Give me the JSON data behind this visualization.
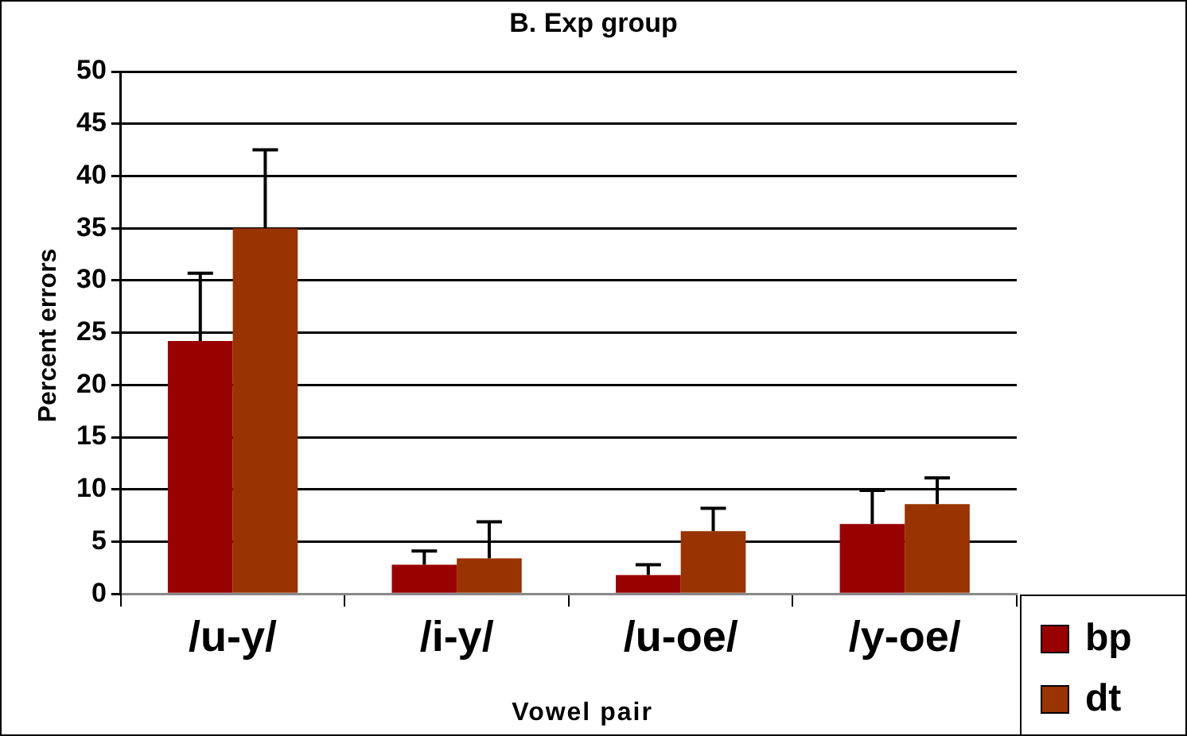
{
  "chart_data": {
    "type": "bar",
    "title": "B. Exp group",
    "xlabel": "Vowel pair",
    "ylabel": "Percent errors",
    "categories": [
      "/u-y/",
      "/i-y/",
      "/u-oe/",
      "/y-oe/"
    ],
    "series": [
      {
        "name": "bp",
        "color": "#990000",
        "values": [
          24.2,
          2.8,
          1.8,
          6.7
        ],
        "errors": [
          [
            24.2,
            30.7
          ],
          [
            2.8,
            4.1
          ],
          [
            1.8,
            2.8
          ],
          [
            6.7,
            9.9
          ]
        ]
      },
      {
        "name": "dt",
        "color": "#993300",
        "values": [
          35,
          3.4,
          6.0,
          8.6
        ],
        "errors": [
          [
            35,
            42.5
          ],
          [
            3.4,
            6.9
          ],
          [
            6.0,
            8.2
          ],
          [
            8.6,
            11.1
          ]
        ]
      }
    ],
    "ylim": [
      0,
      50
    ],
    "yticks": [
      0,
      5,
      10,
      15,
      20,
      25,
      30,
      35,
      40,
      45,
      50
    ],
    "grid": "y",
    "legend": "bottom right"
  }
}
